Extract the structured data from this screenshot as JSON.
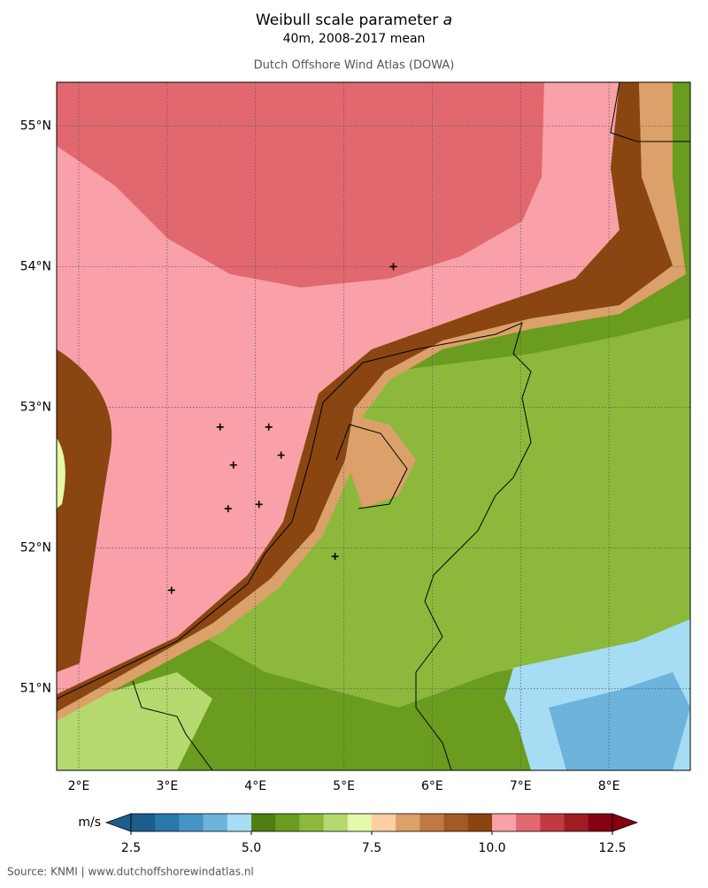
{
  "chart_data": {
    "type": "map",
    "title": "Weibull scale parameter",
    "title_symbol": "a",
    "subtitle": "40m, 2008-2017 mean",
    "source_name": "Dutch Offshore Wind Atlas (DOWA)",
    "xlim": [
      1.75,
      8.92
    ],
    "ylim": [
      50.42,
      55.31
    ],
    "xticks": [
      {
        "value": 2,
        "label": "2°E"
      },
      {
        "value": 3,
        "label": "3°E"
      },
      {
        "value": 4,
        "label": "4°E"
      },
      {
        "value": 5,
        "label": "5°E"
      },
      {
        "value": 6,
        "label": "6°E"
      },
      {
        "value": 7,
        "label": "7°E"
      },
      {
        "value": 8,
        "label": "8°E"
      }
    ],
    "yticks": [
      {
        "value": 51,
        "label": "51°N"
      },
      {
        "value": 52,
        "label": "52°N"
      },
      {
        "value": 53,
        "label": "53°N"
      },
      {
        "value": 54,
        "label": "54°N"
      },
      {
        "value": 55,
        "label": "55°N"
      }
    ],
    "grid": true,
    "markers": {
      "lon": [
        5.56,
        3.6,
        4.15,
        3.75,
        4.29,
        3.69,
        4.04,
        4.9,
        3.05
      ],
      "lat": [
        54.0,
        52.86,
        52.86,
        52.59,
        52.66,
        52.28,
        52.31,
        51.94,
        51.7
      ]
    },
    "colorbar": {
      "label": "m/s",
      "lim": [
        2.5,
        12.5
      ],
      "ticks": [
        2.5,
        {
          "value": 5,
          "label": "5.0"
        },
        7.5,
        {
          "value": 10,
          "label": "10.0"
        },
        12.5
      ],
      "colors": [
        "#1b5e8b",
        "#2a78a8",
        "#4594c3",
        "#6db3db",
        "#a7dcf5",
        "#4e7f10",
        "#6a9c1f",
        "#8cb93c",
        "#b5d96e",
        "#e4f9a9",
        "#fcd0a1",
        "#dca06a",
        "#c07a41",
        "#a35a23",
        "#8a4511",
        "#f9a0a8",
        "#e0686e",
        "#c23a41",
        "#a01c23",
        "#850011"
      ]
    },
    "footer": "Source: KNMI | www.dutchoffshorewindatlas.nl"
  }
}
